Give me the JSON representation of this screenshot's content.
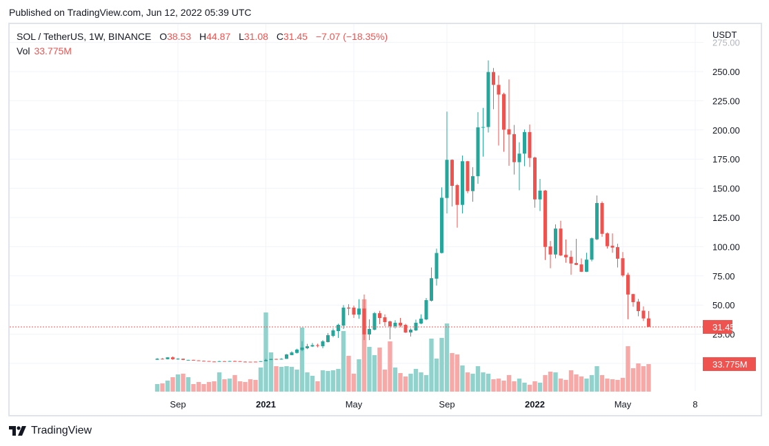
{
  "published": "Published on TradingView.com, Jun 12, 2022 05:39 UTC",
  "legend": {
    "symbol": "SOL / TetherUS, 1W, BINANCE",
    "open_label": "O",
    "open": "38.53",
    "high_label": "H",
    "high": "44.87",
    "low_label": "L",
    "low": "31.08",
    "close_label": "C",
    "close": "31.45",
    "change": "−7.07 (−18.35%)",
    "vol_label": "Vol",
    "vol": "33.775M"
  },
  "axis": {
    "currency": "USDT",
    "price_ticks": [
      "275.00",
      "250.00",
      "225.00",
      "200.00",
      "175.00",
      "150.00",
      "125.00",
      "100.00",
      "75.00",
      "50.00",
      "25.00"
    ],
    "time_ticks": [
      {
        "label": "Sep",
        "date": "2020-09-07"
      },
      {
        "label": "2021",
        "date": "2021-01-04"
      },
      {
        "label": "May",
        "date": "2021-05-03"
      },
      {
        "label": "Sep",
        "date": "2021-09-06"
      },
      {
        "label": "2022",
        "date": "2022-01-03"
      },
      {
        "label": "May",
        "date": "2022-05-02"
      },
      {
        "label": "8",
        "date": "2022-08-08"
      }
    ],
    "last_price_label": "31.45",
    "last_volume_label": "33.775M"
  },
  "footer": {
    "brand": "TradingView",
    "logo_icon": "tradingview-logo-icon"
  },
  "colors": {
    "up": "#26a69a",
    "down": "#ef5350",
    "vol_up": "#92d2cc",
    "vol_down": "#f7a9a7",
    "grid": "#f0f3fa",
    "text": "#131722"
  },
  "chart_data": {
    "type": "candlestick",
    "interval": "1W",
    "ylim": [
      0,
      275
    ],
    "grid": true,
    "columns": [
      "date",
      "open",
      "high",
      "low",
      "close",
      "volume_M"
    ],
    "candles": [
      [
        "2020-08-10",
        3.1,
        4.6,
        3.0,
        4.0,
        9.3
      ],
      [
        "2020-08-17",
        4.0,
        4.6,
        3.3,
        3.6,
        10.1
      ],
      [
        "2020-08-24",
        3.6,
        5.3,
        3.4,
        5.2,
        13.5
      ],
      [
        "2020-08-31",
        5.2,
        5.9,
        3.1,
        3.6,
        17.7
      ],
      [
        "2020-09-07",
        3.4,
        4.6,
        3.0,
        4.0,
        21.1
      ],
      [
        "2020-09-14",
        4.0,
        4.1,
        2.8,
        3.0,
        22.0
      ],
      [
        "2020-09-21",
        2.9,
        3.1,
        2.7,
        3.0,
        17.7
      ],
      [
        "2020-09-28",
        3.0,
        3.1,
        2.5,
        2.6,
        9.3
      ],
      [
        "2020-10-05",
        2.6,
        2.7,
        2.1,
        2.2,
        11.8
      ],
      [
        "2020-10-12",
        2.2,
        2.4,
        1.9,
        2.0,
        9.3
      ],
      [
        "2020-10-19",
        2.0,
        2.1,
        1.5,
        1.6,
        11.8
      ],
      [
        "2020-10-26",
        1.6,
        1.7,
        1.4,
        1.5,
        12.7
      ],
      [
        "2020-11-02",
        1.5,
        2.2,
        1.4,
        1.9,
        23.6
      ],
      [
        "2020-11-09",
        1.9,
        2.0,
        1.7,
        1.8,
        15.2
      ],
      [
        "2020-11-16",
        1.8,
        2.2,
        1.7,
        2.0,
        16.0
      ],
      [
        "2020-11-23",
        2.0,
        2.3,
        1.8,
        1.9,
        20.3
      ],
      [
        "2020-11-30",
        1.9,
        2.0,
        1.4,
        1.5,
        12.7
      ],
      [
        "2020-12-07",
        1.5,
        1.8,
        1.3,
        1.4,
        11.8
      ],
      [
        "2020-12-14",
        1.45,
        1.5,
        1.3,
        1.35,
        15.2
      ],
      [
        "2020-12-21",
        1.5,
        1.55,
        1.3,
        1.4,
        14.4
      ],
      [
        "2020-12-28",
        1.5,
        2.0,
        1.4,
        1.9,
        29.6
      ],
      [
        "2021-01-04",
        1.9,
        3.9,
        1.8,
        3.0,
        97.1
      ],
      [
        "2021-01-11",
        3.0,
        4.0,
        2.9,
        3.8,
        48.1
      ],
      [
        "2021-01-18",
        3.8,
        4.0,
        3.2,
        3.3,
        31.2
      ],
      [
        "2021-01-25",
        3.3,
        4.5,
        3.2,
        3.9,
        30.4
      ],
      [
        "2021-02-01",
        3.9,
        8.0,
        3.8,
        7.7,
        31.2
      ],
      [
        "2021-02-08",
        7.1,
        10.4,
        7.0,
        9.4,
        30.4
      ],
      [
        "2021-02-15",
        9.0,
        12.5,
        8.5,
        11.8,
        27.0
      ],
      [
        "2021-02-22",
        11.5,
        19.0,
        10.5,
        13.6,
        78.5
      ],
      [
        "2021-03-01",
        13.0,
        16.7,
        12.2,
        14.7,
        23.6
      ],
      [
        "2021-03-08",
        14.5,
        17.5,
        14.0,
        15.7,
        19.4
      ],
      [
        "2021-03-15",
        15.6,
        16.9,
        13.8,
        15.0,
        12.7
      ],
      [
        "2021-03-22",
        14.7,
        20.0,
        13.0,
        18.9,
        26.2
      ],
      [
        "2021-03-29",
        18.3,
        26.0,
        18.0,
        24.2,
        25.3
      ],
      [
        "2021-04-05",
        23.6,
        30.0,
        22.4,
        28.3,
        26.2
      ],
      [
        "2021-04-12",
        27.7,
        34.0,
        21.8,
        33.0,
        27.9
      ],
      [
        "2021-04-19",
        32.4,
        50.0,
        29.5,
        47.8,
        74.3
      ],
      [
        "2021-04-26",
        47.8,
        50.7,
        41.3,
        47.0,
        43.9
      ],
      [
        "2021-05-03",
        47.8,
        49.5,
        39.0,
        41.8,
        22.0
      ],
      [
        "2021-05-10",
        41.8,
        55.0,
        38.3,
        47.0,
        39.7
      ],
      [
        "2021-05-17",
        47.0,
        59.0,
        20.0,
        24.8,
        113.2
      ],
      [
        "2021-05-24",
        24.8,
        37.7,
        20.0,
        29.5,
        54.9
      ],
      [
        "2021-05-31",
        28.9,
        44.0,
        28.3,
        43.0,
        44.8
      ],
      [
        "2021-06-07",
        43.0,
        45.0,
        33.6,
        38.9,
        54.0
      ],
      [
        "2021-06-14",
        39.5,
        42.0,
        32.0,
        35.4,
        27.0
      ],
      [
        "2021-06-21",
        36.0,
        36.5,
        20.6,
        31.8,
        61.6
      ],
      [
        "2021-06-28",
        31.8,
        37.0,
        30.0,
        34.8,
        29.6
      ],
      [
        "2021-07-05",
        34.8,
        39.0,
        31.0,
        32.4,
        22.8
      ],
      [
        "2021-07-12",
        33.0,
        34.0,
        26.0,
        26.5,
        18.6
      ],
      [
        "2021-07-19",
        26.5,
        30.0,
        23.0,
        28.9,
        22.0
      ],
      [
        "2021-07-26",
        28.3,
        37.5,
        27.7,
        34.8,
        27.9
      ],
      [
        "2021-08-02",
        34.2,
        42.0,
        33.6,
        38.3,
        23.6
      ],
      [
        "2021-08-09",
        37.7,
        56.0,
        37.0,
        54.2,
        20.3
      ],
      [
        "2021-08-16",
        53.7,
        82.2,
        53.1,
        73.0,
        65.0
      ],
      [
        "2021-08-23",
        72.6,
        98.3,
        66.7,
        94.6,
        40.5
      ],
      [
        "2021-08-30",
        94.6,
        150.8,
        94.2,
        141.9,
        65.9
      ],
      [
        "2021-09-06",
        141.7,
        215.7,
        128.5,
        174.4,
        83.6
      ],
      [
        "2021-09-13",
        174.4,
        174.8,
        134.4,
        152.1,
        47.3
      ],
      [
        "2021-09-20",
        152.7,
        153.7,
        116.3,
        135.8,
        45.6
      ],
      [
        "2021-09-27",
        135.8,
        178.1,
        128.5,
        173.2,
        32.1
      ],
      [
        "2021-10-04",
        173.2,
        173.5,
        145.8,
        147.6,
        23.6
      ],
      [
        "2021-10-11",
        147.6,
        168.1,
        138.5,
        160.4,
        22.0
      ],
      [
        "2021-10-18",
        160.4,
        215.3,
        153.9,
        202.2,
        31.2
      ],
      [
        "2021-10-25",
        202.0,
        218.9,
        177.1,
        202.5,
        23.6
      ],
      [
        "2021-11-01",
        202.5,
        259.6,
        197.8,
        249.6,
        22.0
      ],
      [
        "2021-11-08",
        249.6,
        253.1,
        217.7,
        238.6,
        15.2
      ],
      [
        "2021-11-15",
        238.6,
        246.7,
        186.6,
        230.3,
        16.0
      ],
      [
        "2021-11-22",
        230.7,
        231.9,
        181.3,
        200.2,
        13.5
      ],
      [
        "2021-11-29",
        200.6,
        243.3,
        169.3,
        196.1,
        20.3
      ],
      [
        "2021-12-06",
        196.4,
        204.3,
        161.8,
        172.4,
        12.7
      ],
      [
        "2021-12-13",
        172.4,
        189.4,
        148.3,
        179.7,
        16.0
      ],
      [
        "2021-12-20",
        179.7,
        200.4,
        168.9,
        198.2,
        11.0
      ],
      [
        "2021-12-27",
        198.2,
        204.7,
        168.3,
        176.0,
        8.4
      ],
      [
        "2022-01-03",
        176.4,
        177.0,
        133.4,
        140.5,
        12.7
      ],
      [
        "2022-01-10",
        140.5,
        158.0,
        130.5,
        148.0,
        11.0
      ],
      [
        "2022-01-17",
        148.0,
        148.6,
        88.6,
        99.8,
        20.3
      ],
      [
        "2022-01-24",
        100.2,
        104.9,
        81.5,
        93.3,
        24.5
      ],
      [
        "2022-01-31",
        93.3,
        119.1,
        90.0,
        115.5,
        23.6
      ],
      [
        "2022-02-07",
        115.5,
        122.2,
        91.9,
        92.5,
        16.0
      ],
      [
        "2022-02-14",
        93.0,
        106.1,
        86.2,
        90.9,
        14.4
      ],
      [
        "2022-02-21",
        91.3,
        96.6,
        75.9,
        85.6,
        26.2
      ],
      [
        "2022-02-28",
        86.0,
        106.7,
        84.2,
        84.4,
        21.1
      ],
      [
        "2022-03-07",
        84.8,
        89.9,
        78.3,
        78.5,
        18.6
      ],
      [
        "2022-03-14",
        78.5,
        94.8,
        78.3,
        88.9,
        16.0
      ],
      [
        "2022-03-21",
        88.9,
        107.8,
        87.4,
        107.2,
        20.3
      ],
      [
        "2022-03-28",
        106.3,
        143.9,
        105.6,
        137.4,
        31.2
      ],
      [
        "2022-04-04",
        137.4,
        138.8,
        108.4,
        111.0,
        20.3
      ],
      [
        "2022-04-11",
        111.4,
        112.2,
        98.4,
        100.4,
        16.0
      ],
      [
        "2022-04-18",
        100.8,
        111.4,
        94.8,
        99.2,
        15.2
      ],
      [
        "2022-04-25",
        99.6,
        102.5,
        82.2,
        89.7,
        14.4
      ],
      [
        "2022-05-02",
        90.1,
        95.4,
        74.0,
        75.3,
        16.9
      ],
      [
        "2022-05-09",
        75.9,
        77.7,
        37.8,
        59.0,
        55.7
      ],
      [
        "2022-05-16",
        59.4,
        59.6,
        48.6,
        52.5,
        28.7
      ],
      [
        "2022-05-23",
        52.9,
        55.3,
        40.4,
        44.8,
        34.6
      ],
      [
        "2022-05-30",
        45.2,
        48.8,
        36.3,
        38.53,
        31.2
      ],
      [
        "2022-06-06",
        38.53,
        44.87,
        31.08,
        31.45,
        33.775
      ]
    ]
  }
}
